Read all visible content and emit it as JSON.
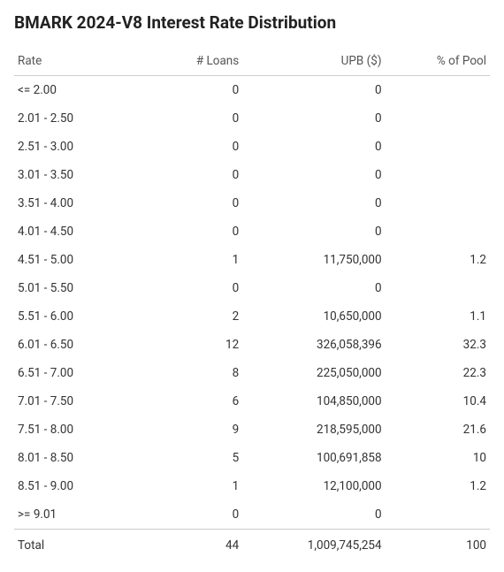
{
  "title": "BMARK 2024-V8 Interest Rate Distribution",
  "table": {
    "columns": [
      "Rate",
      "# Loans",
      "UPB ($)",
      "% of Pool"
    ],
    "rows": [
      [
        "<= 2.00",
        "0",
        "0",
        ""
      ],
      [
        "2.01 - 2.50",
        "0",
        "0",
        ""
      ],
      [
        "2.51 - 3.00",
        "0",
        "0",
        ""
      ],
      [
        "3.01 - 3.50",
        "0",
        "0",
        ""
      ],
      [
        "3.51 - 4.00",
        "0",
        "0",
        ""
      ],
      [
        "4.01 - 4.50",
        "0",
        "0",
        ""
      ],
      [
        "4.51 - 5.00",
        "1",
        "11,750,000",
        "1.2"
      ],
      [
        "5.01 - 5.50",
        "0",
        "0",
        ""
      ],
      [
        "5.51 - 6.00",
        "2",
        "10,650,000",
        "1.1"
      ],
      [
        "6.01 - 6.50",
        "12",
        "326,058,396",
        "32.3"
      ],
      [
        "6.51 - 7.00",
        "8",
        "225,050,000",
        "22.3"
      ],
      [
        "7.01 - 7.50",
        "6",
        "104,850,000",
        "10.4"
      ],
      [
        "7.51 - 8.00",
        "9",
        "218,595,000",
        "21.6"
      ],
      [
        "8.01 - 8.50",
        "5",
        "100,691,858",
        "10"
      ],
      [
        "8.51 - 9.00",
        "1",
        "12,100,000",
        "1.2"
      ],
      [
        ">= 9.01",
        "0",
        "0",
        ""
      ]
    ],
    "footer": [
      "Total",
      "44",
      "1,009,745,254",
      "100"
    ]
  }
}
